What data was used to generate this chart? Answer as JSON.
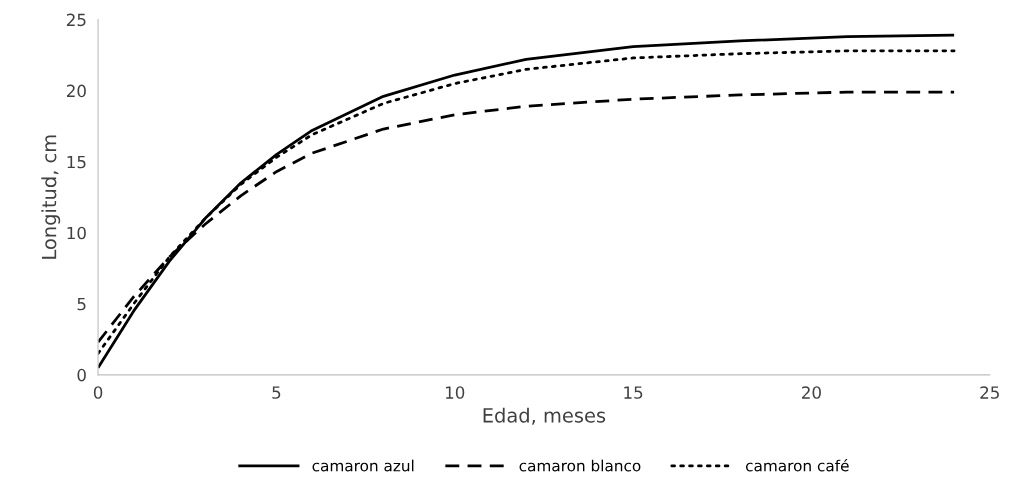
{
  "chart_data": {
    "type": "line",
    "xlabel": "Edad, meses",
    "ylabel": "Longitud, cm",
    "x": [
      0,
      1,
      2,
      3,
      4,
      5,
      6,
      8,
      10,
      12,
      15,
      18,
      21,
      24
    ],
    "series": [
      {
        "name": "camaron azul",
        "color": "#000000",
        "line_style": "solid",
        "values": [
          0.5,
          4.5,
          8,
          11,
          13.5,
          15.5,
          17.2,
          19.6,
          21.1,
          22.2,
          23.1,
          23.5,
          23.8,
          23.9
        ]
      },
      {
        "name": "camaron blanco",
        "color": "#000000",
        "line_style": "dashed",
        "values": [
          2.3,
          5.5,
          8.3,
          10.6,
          12.6,
          14.3,
          15.6,
          17.3,
          18.3,
          18.9,
          19.4,
          19.7,
          19.9,
          19.9
        ]
      },
      {
        "name": "camaron café",
        "color": "#000000",
        "line_style": "dotted",
        "values": [
          1.5,
          5,
          8.3,
          11,
          13.4,
          15.3,
          16.9,
          19.1,
          20.5,
          21.5,
          22.3,
          22.6,
          22.8,
          22.8
        ]
      }
    ],
    "xlim": [
      0,
      25
    ],
    "xticks": [
      0,
      5,
      10,
      15,
      20,
      25
    ],
    "ylim": [
      0,
      25
    ],
    "yticks": [
      0,
      5,
      10,
      15,
      20,
      25
    ],
    "grid": false,
    "legend": "bottom",
    "marker": "none"
  }
}
